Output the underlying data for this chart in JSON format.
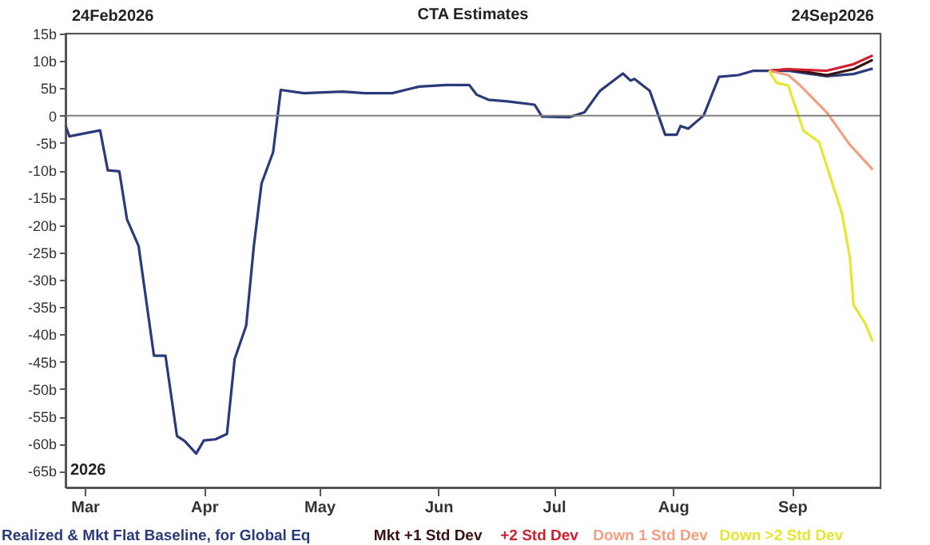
{
  "chart_data": {
    "type": "line",
    "title": "CTA Estimates",
    "xlim": [
      "2026-02-24",
      "2026-09-24"
    ],
    "xticks": [
      {
        "value": "2026-03-01",
        "label": "Mar"
      },
      {
        "value": "2026-04-01",
        "label": "Apr"
      },
      {
        "value": "2026-05-01",
        "label": "May"
      },
      {
        "value": "2026-06-01",
        "label": "Jun"
      },
      {
        "value": "2026-07-01",
        "label": "Jul"
      },
      {
        "value": "2026-08-01",
        "label": "Aug"
      },
      {
        "value": "2026-09-01",
        "label": "Sep"
      }
    ],
    "ylim": [
      -68,
      15
    ],
    "yticks": [
      {
        "value": 15,
        "label": "15b"
      },
      {
        "value": 10,
        "label": "10b"
      },
      {
        "value": 5,
        "label": "5b"
      },
      0,
      {
        "value": -5,
        "label": "-5b"
      },
      {
        "value": -10,
        "label": "-10b"
      },
      {
        "value": -15,
        "label": "-15b"
      },
      {
        "value": -20,
        "label": "-20b"
      },
      {
        "value": -25,
        "label": "-25b"
      },
      {
        "value": -30,
        "label": "-30b"
      },
      {
        "value": -35,
        "label": "-35b"
      },
      {
        "value": -40,
        "label": "-40b"
      },
      {
        "value": -45,
        "label": "-45b"
      },
      {
        "value": -50,
        "label": "-50b"
      },
      {
        "value": -55,
        "label": "-55b"
      },
      {
        "value": -60,
        "label": "-60b"
      },
      {
        "value": -65,
        "label": "-65b"
      }
    ],
    "grid": false,
    "legend": "bottom",
    "marker": "none",
    "line_style": "solid",
    "ref_lines": [
      {
        "axis": "y",
        "value": 0,
        "color": "#808080"
      }
    ],
    "annotations": [
      "24Feb2026",
      "24Sep2026",
      "2026"
    ],
    "series": [
      {
        "name": "Realized & Mkt Flat Baseline, for Global Eq",
        "color": "#2b3a7a",
        "x": [
          "2026-02-24",
          "2026-02-25",
          "2026-03-05",
          "2026-03-07",
          "2026-03-10",
          "2026-03-12",
          "2026-03-15",
          "2026-03-19",
          "2026-03-22",
          "2026-03-25",
          "2026-03-27",
          "2026-03-30",
          "2026-04-01",
          "2026-04-04",
          "2026-04-07",
          "2026-04-09",
          "2026-04-12",
          "2026-04-14",
          "2026-04-16",
          "2026-04-19",
          "2026-04-21",
          "2026-04-27",
          "2026-05-07",
          "2026-05-13",
          "2026-05-20",
          "2026-05-27",
          "2026-06-03",
          "2026-06-09",
          "2026-06-11",
          "2026-06-14",
          "2026-06-19",
          "2026-06-26",
          "2026-06-28",
          "2026-07-05",
          "2026-07-09",
          "2026-07-13",
          "2026-07-19",
          "2026-07-21",
          "2026-07-22",
          "2026-07-26",
          "2026-07-30",
          "2026-08-02",
          "2026-08-03",
          "2026-08-05",
          "2026-08-09",
          "2026-08-13",
          "2026-08-18",
          "2026-08-22",
          "2026-08-26",
          "2026-08-31",
          "2026-09-10",
          "2026-09-17",
          "2026-09-22"
        ],
        "values": [
          -1.8,
          -3.8,
          -2.7,
          -10,
          -10.2,
          -19,
          -23.8,
          -43.9,
          -43.9,
          -58.6,
          -59.5,
          -61.8,
          -59.4,
          -59.2,
          -58.2,
          -44.5,
          -38.4,
          -23.8,
          -12.4,
          -6.7,
          4.7,
          4.1,
          4.4,
          4.1,
          4.1,
          5.3,
          5.6,
          5.6,
          3.8,
          2.9,
          2.6,
          2.0,
          -0.2,
          -0.3,
          0.6,
          4.5,
          7.7,
          6.4,
          6.7,
          4.5,
          -3.5,
          -3.5,
          -1.9,
          -2.4,
          0,
          7.1,
          7.4,
          8.2,
          8.2,
          8.2,
          7.2,
          7.6,
          8.6
        ]
      },
      {
        "name": "Mkt +1 Std Dev",
        "color": "#3a1010",
        "x": [
          "2026-08-26",
          "2026-08-31",
          "2026-09-10",
          "2026-09-17",
          "2026-09-22"
        ],
        "values": [
          8.2,
          8.5,
          7.4,
          8.5,
          10.2
        ]
      },
      {
        "name": "+2 Std Dev",
        "color": "#d0202e",
        "x": [
          "2026-08-26",
          "2026-08-31",
          "2026-09-10",
          "2026-09-17",
          "2026-09-22"
        ],
        "values": [
          8.2,
          8.5,
          8.2,
          9.4,
          11
        ]
      },
      {
        "name": "Down 1 Std Dev",
        "color": "#f0a080",
        "x": [
          "2026-08-26",
          "2026-08-31",
          "2026-09-03",
          "2026-09-10",
          "2026-09-16",
          "2026-09-22"
        ],
        "values": [
          8.2,
          7.4,
          5.6,
          0.6,
          -5.3,
          -9.9
        ]
      },
      {
        "name": "Down >2 Std Dev",
        "color": "#e6e630",
        "x": [
          "2026-08-26",
          "2026-08-28",
          "2026-08-31",
          "2026-09-04",
          "2026-09-08",
          "2026-09-14",
          "2026-09-16",
          "2026-09-17",
          "2026-09-20",
          "2026-09-22"
        ],
        "values": [
          8.2,
          6,
          5.5,
          -2.8,
          -4.8,
          -17.9,
          -25.8,
          -34.6,
          -38,
          -41.3
        ]
      }
    ]
  }
}
